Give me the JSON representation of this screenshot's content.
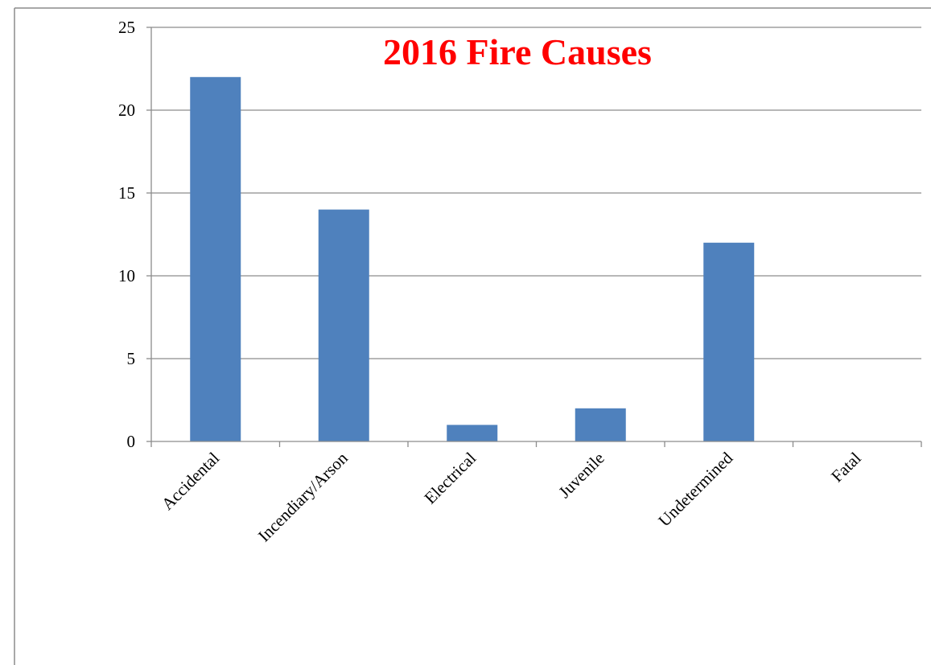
{
  "chart_data": {
    "type": "bar",
    "title": "2016 Fire Causes",
    "categories": [
      "Accidental",
      "Incendiary/Arson",
      "Electrical",
      "Juvenile",
      "Undetermined",
      "Fatal"
    ],
    "values": [
      22,
      14,
      1,
      2,
      12,
      0
    ],
    "xlabel": "",
    "ylabel": "",
    "ylim": [
      0,
      25
    ],
    "yticks": [
      0,
      5,
      10,
      15,
      20,
      25
    ],
    "grid": true,
    "legend": "none",
    "colors": {
      "bar": "#4f81bd",
      "title": "#ff0000",
      "grid": "#8c8c8c",
      "axis": "#8c8c8c",
      "border": "#8c8c8c"
    }
  }
}
